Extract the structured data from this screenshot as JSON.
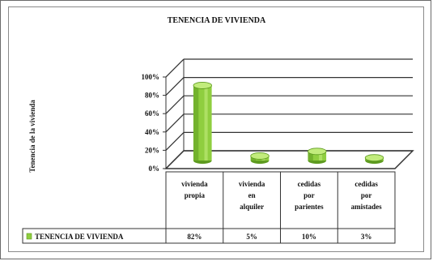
{
  "chart_data": {
    "type": "bar",
    "title": "TENENCIA DE VIVIENDA",
    "ylabel": "Tenencia de la vivienda",
    "xlabel": "",
    "categories": [
      [
        "vivienda",
        "propia"
      ],
      [
        "vivienda",
        "en",
        "alquiler"
      ],
      [
        "cedidas",
        "por",
        "parientes"
      ],
      [
        "cedidas",
        "por",
        "amistades"
      ]
    ],
    "series": [
      {
        "name": "TENENCIA DE VIVIENDA",
        "values": [
          82,
          5,
          10,
          3
        ],
        "value_labels": [
          "82%",
          "5%",
          "10%",
          "3%"
        ]
      }
    ],
    "y_ticks": [
      "0%",
      "20%",
      "40%",
      "60%",
      "80%",
      "100%"
    ],
    "ylim": [
      0,
      100
    ],
    "three_d": true,
    "grid": true,
    "legend": "data table",
    "colors": {
      "bar": "#8fce3f",
      "bar_dark": "#5d9a1f",
      "bar_light": "#c2ec7c",
      "grid": "#333333",
      "floor": "#ffffff"
    }
  }
}
